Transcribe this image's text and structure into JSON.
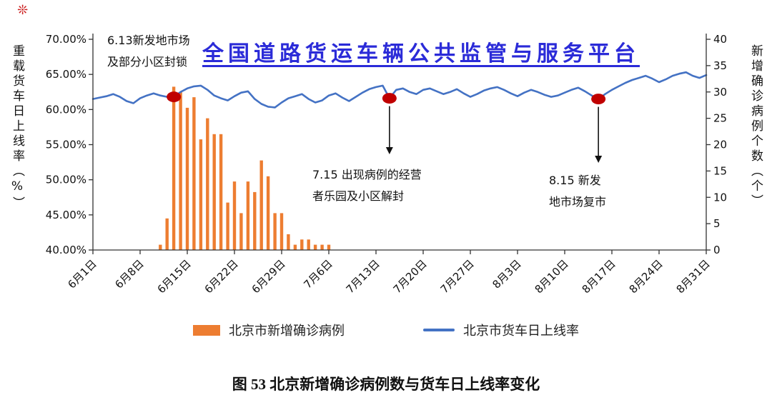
{
  "watermark": "全国道路货运车辆公共监管与服务平台",
  "caption": "图 53  北京新增确诊病例数与货车日上线率变化",
  "legend": {
    "bars": "北京市新增确诊病例",
    "line": "北京市货车日上线率"
  },
  "logo_fragment": "❊",
  "chart_data": {
    "type": "bar+line",
    "left_axis": {
      "title": "重载货车日上线率（%）",
      "min": 40,
      "max": 70,
      "ticks": [
        "70.00%",
        "65.00%",
        "60.00%",
        "55.00%",
        "50.00%",
        "45.00%",
        "40.00%"
      ]
    },
    "right_axis": {
      "title": "新增确诊病例个数（个）",
      "min": 0,
      "max": 40,
      "ticks": [
        "40",
        "35",
        "30",
        "25",
        "20",
        "15",
        "10",
        "5",
        "0"
      ]
    },
    "x_axis": {
      "tick_days": [
        0,
        7,
        14,
        21,
        28,
        35,
        42,
        49,
        56,
        63,
        70,
        77,
        84,
        91
      ],
      "tick_labels": [
        "6月1日",
        "6月8日",
        "6月15日",
        "6月22日",
        "6月29日",
        "7月6日",
        "7月13日",
        "7月20日",
        "7月27日",
        "8月3日",
        "8月10日",
        "8月17日",
        "8月24日",
        "8月31日"
      ]
    },
    "series": [
      {
        "name": "北京市新增确诊病例",
        "type": "bar",
        "color": "#ED7D31",
        "values": [
          0,
          0,
          0,
          0,
          0,
          0,
          0,
          0,
          0,
          0,
          1,
          6,
          31,
          30,
          27,
          29,
          21,
          25,
          22,
          22,
          9,
          13,
          7,
          13,
          11,
          17,
          14,
          7,
          7,
          3,
          1,
          2,
          2,
          1,
          1,
          1,
          0,
          0,
          0,
          0,
          0,
          0,
          0,
          0,
          0,
          0,
          0,
          0,
          0,
          0,
          0,
          0,
          0,
          0,
          0,
          0,
          0,
          0,
          0,
          0,
          0,
          0,
          0,
          0,
          0,
          0,
          0,
          0,
          0,
          0,
          0,
          0,
          0,
          0,
          0,
          0,
          0,
          0,
          0,
          0,
          0,
          0,
          0,
          0,
          0,
          0,
          0,
          0,
          0,
          0,
          0,
          0
        ]
      },
      {
        "name": "北京市货车日上线率",
        "type": "line",
        "color": "#4472C4",
        "values": [
          61.5,
          61.7,
          61.9,
          62.2,
          61.8,
          61.2,
          60.9,
          61.6,
          62.0,
          62.3,
          62.0,
          61.8,
          61.8,
          62.5,
          63.0,
          63.3,
          63.4,
          62.8,
          62.0,
          61.6,
          61.3,
          61.9,
          62.4,
          62.6,
          61.5,
          60.8,
          60.4,
          60.3,
          61.0,
          61.6,
          61.9,
          62.2,
          61.5,
          61.0,
          61.3,
          62.0,
          62.3,
          61.7,
          61.2,
          61.8,
          62.4,
          62.9,
          63.2,
          63.4,
          61.6,
          62.8,
          63.0,
          62.5,
          62.2,
          62.8,
          63.0,
          62.6,
          62.2,
          62.5,
          62.9,
          62.3,
          61.8,
          62.2,
          62.7,
          63.0,
          63.2,
          62.8,
          62.3,
          61.9,
          62.4,
          62.8,
          62.5,
          62.1,
          61.8,
          62.0,
          62.4,
          62.8,
          63.1,
          62.6,
          62.0,
          61.5,
          62.2,
          62.8,
          63.3,
          63.8,
          64.2,
          64.5,
          64.8,
          64.4,
          63.9,
          64.3,
          64.8,
          65.1,
          65.3,
          64.8,
          64.5,
          64.9
        ]
      }
    ],
    "annotations": [
      {
        "id": "lockdown-6-13",
        "day": 12,
        "dot_value": 61.8,
        "arrow": false,
        "arrow_y2": 0,
        "text_x": 150,
        "text_y": 42,
        "lines": [
          "6.13新发地市场",
          "及部分小区封锁"
        ]
      },
      {
        "id": "unseal-7-15",
        "day": 44,
        "dot_value": 61.6,
        "arrow": true,
        "arrow_y2": 216,
        "text_x": 437,
        "text_y": 230,
        "lines": [
          "7.15 出现病例的经营",
          "者乐园及小区解封"
        ]
      },
      {
        "id": "market-reopen-8-15",
        "day": 75,
        "dot_value": 61.5,
        "arrow": true,
        "arrow_y2": 228,
        "text_x": 768,
        "text_y": 238,
        "lines": [
          "8.15  新发",
          "地市场复市"
        ]
      }
    ],
    "dot_color": "#C00000",
    "legend_position": "bottom",
    "grid": false
  }
}
